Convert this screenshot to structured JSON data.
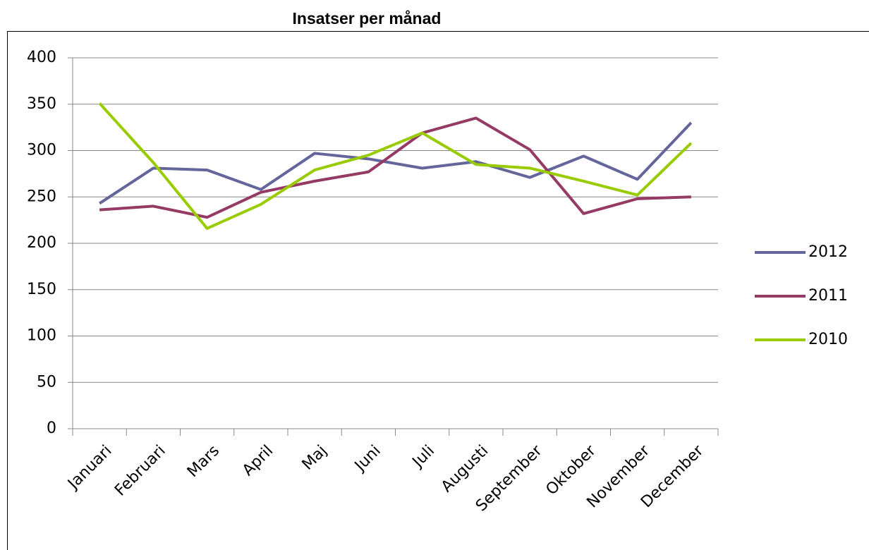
{
  "chart_data": {
    "type": "line",
    "title": "Insatser per månad",
    "categories": [
      "Januari",
      "Februari",
      "Mars",
      "April",
      "Maj",
      "Juni",
      "Juli",
      "Augusti",
      "September",
      "Oktober",
      "November",
      "December"
    ],
    "series": [
      {
        "name": "2012",
        "color": "#64659b",
        "values": [
          243,
          281,
          279,
          258,
          297,
          291,
          281,
          288,
          271,
          294,
          269,
          330
        ]
      },
      {
        "name": "2011",
        "color": "#953a64",
        "values": [
          236,
          240,
          228,
          255,
          267,
          277,
          319,
          335,
          301,
          232,
          248,
          250
        ]
      },
      {
        "name": "2010",
        "color": "#99cc00",
        "values": [
          351,
          287,
          216,
          242,
          279,
          295,
          319,
          285,
          281,
          267,
          252,
          308
        ]
      }
    ],
    "ylim": [
      0,
      400
    ],
    "yticks": [
      0,
      50,
      100,
      150,
      200,
      250,
      300,
      350,
      400
    ],
    "grid": true,
    "legend": "right"
  }
}
